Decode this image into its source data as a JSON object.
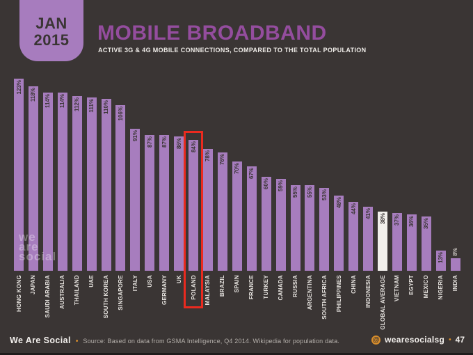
{
  "header": {
    "badge_line1": "JAN",
    "badge_line2": "2015",
    "title": "MOBILE BROADBAND",
    "subtitle": "ACTIVE 3G & 4G MOBILE CONNECTIONS, COMPARED TO THE TOTAL POPULATION"
  },
  "watermark": {
    "line1": "we",
    "line2": "are",
    "line3": "social"
  },
  "chart_data": {
    "type": "bar",
    "title": "MOBILE BROADBAND",
    "subtitle": "ACTIVE 3G & 4G MOBILE CONNECTIONS, COMPARED TO THE TOTAL POPULATION",
    "unit": "%",
    "value_suffix": "%",
    "ylim": [
      0,
      123
    ],
    "grid": false,
    "legend": false,
    "value_label_position": "inside-top-rotated",
    "category_label_orientation": "vertical-bottom-to-top",
    "categories": [
      "HONG KONG",
      "JAPAN",
      "SAUDI ARABIA",
      "AUSTRALIA",
      "THAILAND",
      "UAE",
      "SOUTH KOREA",
      "SINGAPORE",
      "ITALY",
      "USA",
      "GERMANY",
      "UK",
      "POLAND",
      "MALAYSIA",
      "BRAZIL",
      "SPAIN",
      "FRANCE",
      "TURKEY",
      "CANADA",
      "RUSSIA",
      "ARGENTINA",
      "SOUTH AFRICA",
      "PHILIPPINES",
      "CHINA",
      "INDONESIA",
      "GLOBAL AVERAGE",
      "VIETNAM",
      "EGYPT",
      "MEXICO",
      "NIGERIA",
      "INDIA"
    ],
    "values": [
      123,
      118,
      114,
      114,
      112,
      111,
      110,
      106,
      91,
      87,
      87,
      86,
      84,
      78,
      76,
      70,
      67,
      60,
      59,
      55,
      55,
      53,
      48,
      44,
      41,
      38,
      37,
      36,
      35,
      13,
      8
    ],
    "highlight": {
      "category": "POLAND",
      "index": 12,
      "style": "red-outline-box"
    },
    "white_bar_index": 25,
    "outside_label_indices": [
      30
    ],
    "colors": {
      "bar": "#a77dbe",
      "white_bar": "#f2f0ec",
      "value_text": "#3a3534",
      "outside_value_text": "#c9c5c0",
      "category_text": "#e8e5e1",
      "highlight_box": "#ea2a1f",
      "background": "#3a3534"
    }
  },
  "footer": {
    "brand": "We Are Social",
    "separator": "•",
    "source": "Source: Based on data from GSMA Intelligence, Q4 2014. Wikipedia for population data.",
    "at_symbol": "@",
    "handle": "wearesocialsg",
    "page": "47"
  }
}
